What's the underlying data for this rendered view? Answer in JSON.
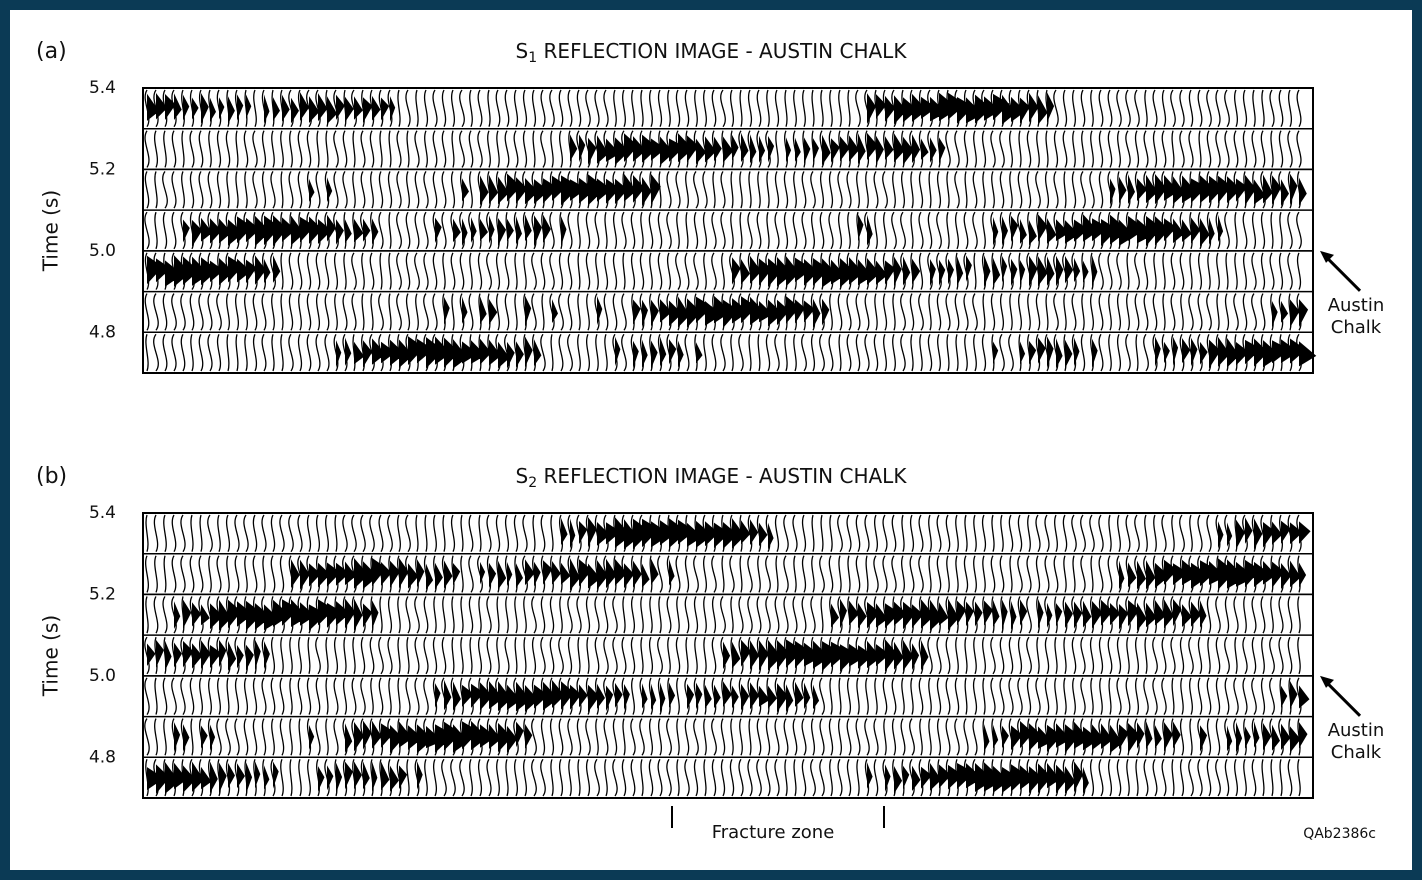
{
  "chart_data": [
    {
      "type": "wiggle",
      "panel_label": "(a)",
      "title_main": "S",
      "title_subscript": "1",
      "title_rest": " REFLECTION IMAGE - AUSTIN CHALK",
      "y_label": "Time (s)",
      "ylim": [
        4.7,
        5.4
      ],
      "yticks": [
        4.8,
        {
          "value": 5.0,
          "label": "5.0"
        },
        5.2,
        5.4
      ],
      "annotation_lines": [
        "Austin",
        "Chalk"
      ]
    },
    {
      "type": "wiggle",
      "panel_label": "(b)",
      "title_main": "S",
      "title_subscript": "2",
      "title_rest": " REFLECTION IMAGE - AUSTIN CHALK",
      "y_label": "Time (s)",
      "ylim": [
        4.7,
        5.4
      ],
      "yticks": [
        4.8,
        {
          "value": 5.0,
          "label": "5.0"
        },
        5.2,
        5.4
      ],
      "annotation_lines": [
        "Austin",
        "Chalk"
      ],
      "x_annotation": "Fracture zone"
    }
  ],
  "figure_id": "QAb2386c"
}
